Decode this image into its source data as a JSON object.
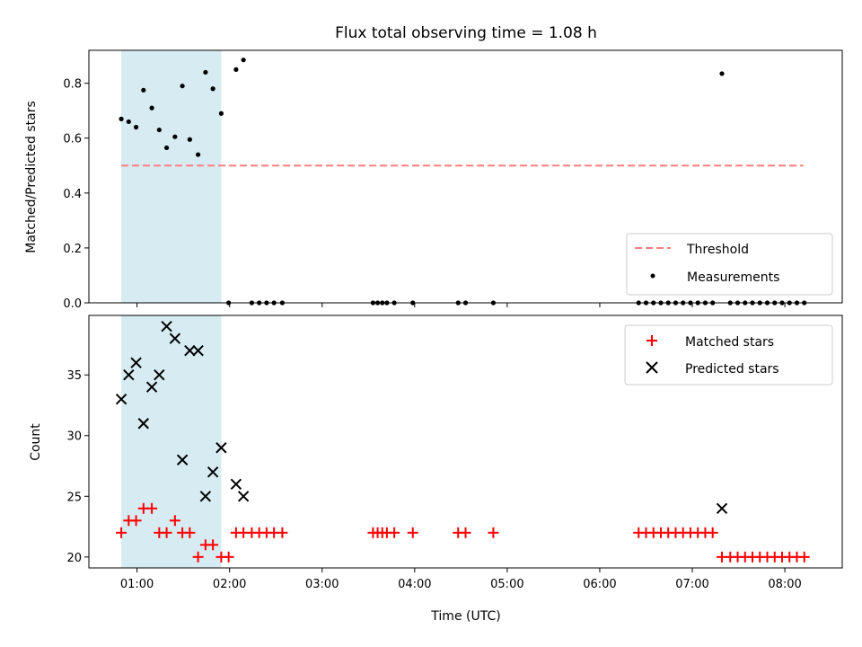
{
  "chart_data": {
    "type": "scatter",
    "title": "Flux total observing time = 1.08 h",
    "xlabel": "Time (UTC)",
    "x_ticks": [
      "01:00",
      "02:00",
      "03:00",
      "04:00",
      "05:00",
      "06:00",
      "07:00",
      "08:00"
    ],
    "x_tick_values": [
      1,
      2,
      3,
      4,
      5,
      6,
      7,
      8
    ],
    "xlim": [
      0.48,
      8.62
    ],
    "shaded_region": {
      "x": [
        0.83,
        1.91
      ],
      "color": "#add8e6"
    },
    "panels": [
      {
        "id": "ratio",
        "ylabel": "Matched/Predicted stars",
        "ylim": [
          0.0,
          0.92
        ],
        "y_ticks": [
          "0.0",
          "0.2",
          "0.4",
          "0.6",
          "0.8"
        ],
        "y_tick_values": [
          0.0,
          0.2,
          0.4,
          0.6,
          0.8
        ],
        "legend": [
          {
            "label": "Threshold",
            "style": "dashed-line",
            "color": "#ff7f7f"
          },
          {
            "label": "Measurements",
            "style": "dot",
            "color": "#000000"
          }
        ],
        "threshold": {
          "y": 0.5,
          "x": [
            0.83,
            8.2
          ],
          "color": "#ff7f7f"
        },
        "measurements": {
          "color": "#000000",
          "x": [
            0.83,
            0.91,
            0.99,
            1.07,
            1.16,
            1.24,
            1.32,
            1.41,
            1.49,
            1.57,
            1.66,
            1.74,
            1.82,
            1.91,
            1.99,
            2.07,
            2.15,
            2.24,
            2.32,
            2.4,
            2.48,
            2.57,
            3.55,
            3.6,
            3.65,
            3.7,
            3.78,
            3.98,
            4.47,
            4.55,
            4.85,
            6.42,
            6.5,
            6.58,
            6.66,
            6.74,
            6.82,
            6.9,
            6.98,
            7.06,
            7.14,
            7.22,
            7.32,
            7.41,
            7.49,
            7.57,
            7.65,
            7.73,
            7.81,
            7.89,
            7.97,
            8.05,
            8.13,
            8.21
          ],
          "y": [
            0.67,
            0.66,
            0.64,
            0.775,
            0.71,
            0.63,
            0.565,
            0.605,
            0.79,
            0.595,
            0.54,
            0.84,
            0.78,
            0.69,
            0.0,
            0.85,
            0.885,
            0.0,
            0.0,
            0.0,
            0.0,
            0.0,
            0.0,
            0.0,
            0.0,
            0.0,
            0.0,
            0.0,
            0.0,
            0.0,
            0.0,
            0.0,
            0.0,
            0.0,
            0.0,
            0.0,
            0.0,
            0.0,
            0.0,
            0.0,
            0.0,
            0.0,
            0.835,
            0.0,
            0.0,
            0.0,
            0.0,
            0.0,
            0.0,
            0.0,
            0.0,
            0.0,
            0.0,
            0.0
          ]
        }
      },
      {
        "id": "count",
        "ylabel": "Count",
        "ylim": [
          19.1,
          39.9
        ],
        "y_ticks": [
          "20",
          "25",
          "30",
          "35"
        ],
        "y_tick_values": [
          20,
          25,
          30,
          35
        ],
        "legend": [
          {
            "label": "Matched stars",
            "style": "plus",
            "color": "#ff0000"
          },
          {
            "label": "Predicted stars",
            "style": "x",
            "color": "#000000"
          }
        ],
        "series": [
          {
            "name": "Matched stars",
            "marker": "plus",
            "color": "#ff0000",
            "x": [
              0.83,
              0.91,
              0.99,
              1.07,
              1.16,
              1.24,
              1.32,
              1.41,
              1.49,
              1.57,
              1.66,
              1.74,
              1.82,
              1.91,
              1.99,
              2.07,
              2.15,
              2.24,
              2.32,
              2.4,
              2.48,
              2.57,
              3.55,
              3.6,
              3.65,
              3.7,
              3.78,
              3.98,
              4.47,
              4.55,
              4.85,
              6.42,
              6.5,
              6.58,
              6.66,
              6.74,
              6.82,
              6.9,
              6.98,
              7.06,
              7.14,
              7.22,
              7.32,
              7.41,
              7.49,
              7.57,
              7.65,
              7.73,
              7.81,
              7.89,
              7.97,
              8.05,
              8.13,
              8.21
            ],
            "y": [
              22,
              23,
              23,
              24,
              24,
              22,
              22,
              23,
              22,
              22,
              20,
              21,
              21,
              20,
              20,
              22,
              22,
              22,
              22,
              22,
              22,
              22,
              22,
              22,
              22,
              22,
              22,
              22,
              22,
              22,
              22,
              22,
              22,
              22,
              22,
              22,
              22,
              22,
              22,
              22,
              22,
              22,
              20,
              20,
              20,
              20,
              20,
              20,
              20,
              20,
              20,
              20,
              20,
              20
            ]
          },
          {
            "name": "Predicted stars",
            "marker": "x",
            "color": "#000000",
            "x": [
              0.83,
              0.91,
              0.99,
              1.07,
              1.16,
              1.24,
              1.32,
              1.41,
              1.49,
              1.57,
              1.66,
              1.74,
              1.82,
              1.91,
              2.07,
              2.15,
              7.32
            ],
            "y": [
              33,
              35,
              36,
              31,
              34,
              35,
              39,
              38,
              28,
              37,
              37,
              25,
              27,
              29,
              26,
              25,
              24
            ]
          }
        ]
      }
    ]
  }
}
